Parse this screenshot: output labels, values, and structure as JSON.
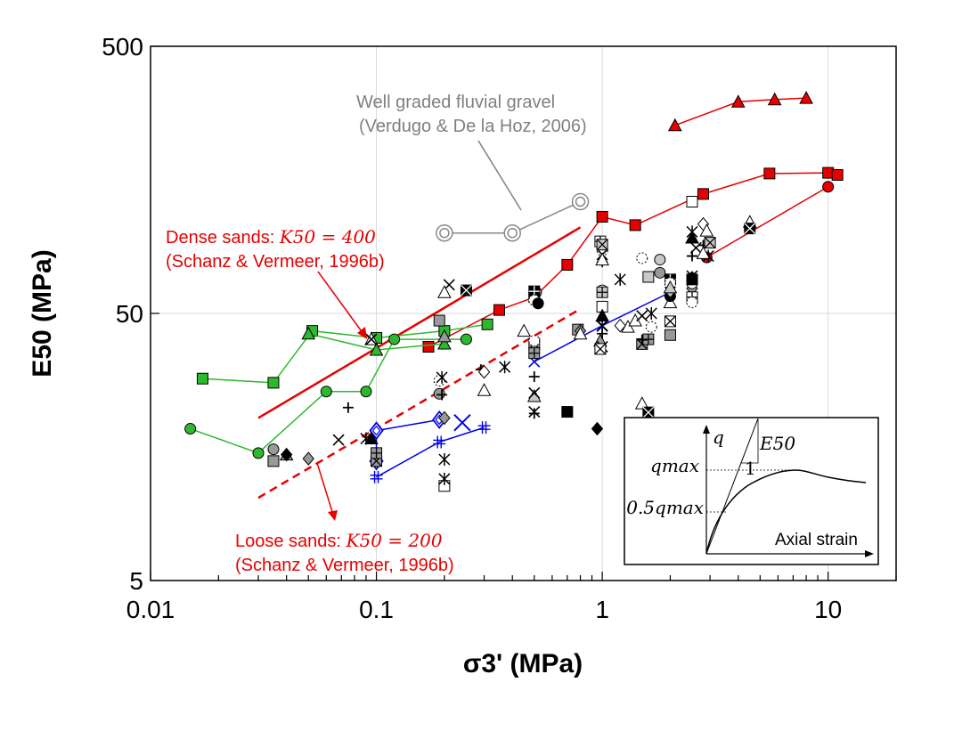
{
  "chart_data": {
    "type": "scatter",
    "x_scale": "log",
    "y_scale": "log",
    "xlim": [
      0.01,
      20
    ],
    "ylim": [
      5,
      500
    ],
    "x_ticks": [
      "0.01",
      "0.1",
      "1",
      "10"
    ],
    "y_ticks": [
      "5",
      "50",
      "500"
    ],
    "ylabel": "E50 (MPa)",
    "xlabel": "σ3' (MPa)",
    "grid": true,
    "annotations": {
      "gravel": [
        "Well graded fluvial gravel",
        "(Verdugo & De la Hoz, 2006)"
      ],
      "dense": [
        "Dense sands: ",
        "K50 = 400",
        "(Schanz & Vermeer, 1996b)"
      ],
      "loose": [
        "Loose sands: ",
        "K50 = 200",
        "(Schanz & Vermeer, 1996b)"
      ]
    },
    "inset": {
      "y_label": "q",
      "slope_label": "E50",
      "one": "1",
      "qmax": "qmax",
      "half_qmax": "0.5qmax",
      "x_label": "Axial strain"
    },
    "reference_lines": [
      {
        "name": "Dense sands K50 = 400",
        "color": "#e60000",
        "dash": false,
        "x": [
          0.03,
          0.8
        ],
        "y": [
          20.3,
          105
        ]
      },
      {
        "name": "Loose sands K50 = 200",
        "color": "#e60000",
        "dash": true,
        "x": [
          0.03,
          0.8
        ],
        "y": [
          10.2,
          52
        ]
      }
    ],
    "series": [
      {
        "color": "#e60000",
        "marker": "triangle",
        "fill": "#e60000",
        "x": [
          2.1,
          4,
          5.8,
          8
        ],
        "y": [
          253,
          310,
          316,
          320
        ]
      },
      {
        "color": "#e60000",
        "marker": "square",
        "fill": "#e60000",
        "x": [
          0.17,
          0.35,
          0.5,
          0.7,
          1,
          1.4,
          2.8,
          5.5,
          10,
          11
        ],
        "y": [
          37.5,
          51.5,
          57.5,
          76,
          115,
          107,
          140,
          167,
          168,
          165
        ]
      },
      {
        "color": "#e60000",
        "marker": "circle",
        "fill": "#e60000",
        "x": [
          2.9,
          10
        ],
        "y": [
          81,
          149
        ]
      },
      {
        "color": "#2eb82e",
        "marker": "square",
        "fill": "#2eb82e",
        "x": [
          0.017,
          0.035,
          0.052,
          0.1,
          0.2,
          0.31
        ],
        "y": [
          28.5,
          27.5,
          43,
          40.5,
          43,
          45.5
        ]
      },
      {
        "color": "#2eb82e",
        "marker": "triangle",
        "fill": "#2eb82e",
        "x": [
          0.05,
          0.1,
          0.2
        ],
        "y": [
          42,
          36.5,
          38.5
        ]
      },
      {
        "color": "#2eb82e",
        "marker": "circle",
        "fill": "#2eb82e",
        "x": [
          0.015,
          0.03,
          0.06,
          0.09,
          0.12,
          0.25
        ],
        "y": [
          18.5,
          15,
          25.5,
          25.5,
          40,
          40
        ]
      },
      {
        "color": "#0000e6",
        "marker": "diamond-open",
        "fill": "none",
        "x": [
          0.1,
          0.1,
          0.19
        ],
        "y": [
          14,
          18.2,
          20
        ]
      },
      {
        "color": "#0000e6",
        "marker": "plus-double",
        "fill": "none",
        "x": [
          0.1,
          0.19,
          0.3
        ],
        "y": [
          12.2,
          16.5,
          18.7
        ]
      },
      {
        "color": "#0000e6",
        "marker": "x",
        "fill": "none",
        "x": [
          0.5,
          1,
          2
        ],
        "y": [
          33,
          45,
          60
        ]
      },
      {
        "color": "#0000e6",
        "marker": "x-large",
        "fill": "none",
        "x": [
          0.24
        ],
        "y": [
          19.5
        ]
      },
      {
        "color": "#888888",
        "marker": "circle-double",
        "fill": "none",
        "x": [
          0.2,
          0.4,
          0.8
        ],
        "y": [
          100,
          100,
          131
        ]
      },
      {
        "color": "#000000",
        "marker": "mixed",
        "fill": "#999999",
        "x": [
          0.035,
          0.035,
          0.05,
          0.04,
          0.068,
          0.075,
          0.09,
          0.095,
          0.1,
          0.1,
          0.19,
          0.19,
          0.19,
          0.2,
          0.2,
          0.21,
          0.29,
          0.37,
          0.45,
          0.5,
          0.5,
          0.5,
          0.51,
          0.78,
          0.8,
          0.98,
          1,
          1,
          1,
          1.3,
          1.5,
          1.6,
          1.65,
          1.8,
          2,
          2.5
        ],
        "y": [
          15.5,
          14,
          14.3,
          14.8,
          16.8,
          22.2,
          17,
          40,
          14,
          15,
          28,
          25,
          47,
          20.3,
          41,
          64,
          30.8,
          31.5,
          43,
          38.5,
          35.5,
          39.5,
          60,
          43.5,
          43,
          39.5,
          37.5,
          42,
          44.8,
          44.5,
          38.4,
          40,
          44.5,
          71,
          41.5,
          62
        ]
      },
      {
        "color": "#000000",
        "marker": "mixed",
        "fill": "#ffffff",
        "x": [
          0.2,
          0.3,
          0.3,
          0.5,
          0.5,
          0.2,
          0.8,
          0.98,
          0.98,
          1,
          1,
          1,
          1.2,
          1.4,
          1.5,
          1.5,
          1.65,
          2,
          2,
          2.5,
          2.5,
          2.5,
          2.5,
          2.8,
          2.9
        ],
        "y": [
          11.3,
          30.2,
          25.8,
          21.4,
          21.1,
          12,
          42,
          36.8,
          93,
          86,
          61,
          53,
          45,
          47,
          49,
          39.8,
          50,
          55,
          46.7,
          57.5,
          55,
          64.8,
          131,
          108,
          102
        ]
      },
      {
        "color": "#000000",
        "marker": "mixed",
        "fill": "#000000",
        "x": [
          0.04,
          0.095,
          0.095,
          0.195,
          0.195,
          0.2,
          0.25,
          0.5,
          0.5,
          0.52,
          0.7,
          0.95,
          1,
          1,
          1,
          1.2,
          1.5,
          1.6,
          2,
          2,
          2,
          2.5,
          2.5,
          2.5,
          2.6,
          2.8,
          2.95,
          4.5,
          4.5
        ],
        "y": [
          14.8,
          17,
          40,
          24.8,
          28.8,
          60,
          61,
          60.5,
          56,
          54.5,
          21.4,
          18.5,
          49,
          83,
          78,
          67,
          23,
          21.3,
          67,
          65,
          58,
          67,
          68,
          96,
          88,
          90,
          82,
          110,
          104
        ]
      },
      {
        "color": "#000000",
        "marker": "mixed",
        "fill": "#c8c8c8",
        "x": [
          0.5,
          0.5,
          0.5,
          0.2,
          1,
          1,
          1,
          1.5,
          1.8,
          1.6,
          2,
          2,
          2.5,
          2.5,
          2.5,
          2.8,
          3
        ],
        "y": [
          24.5,
          25.2,
          29,
          14.2,
          79.5,
          90.5,
          60,
          80.5,
          79.5,
          68.5,
          60.5,
          62.5,
          69,
          82,
          101,
          84,
          92
        ]
      }
    ]
  }
}
